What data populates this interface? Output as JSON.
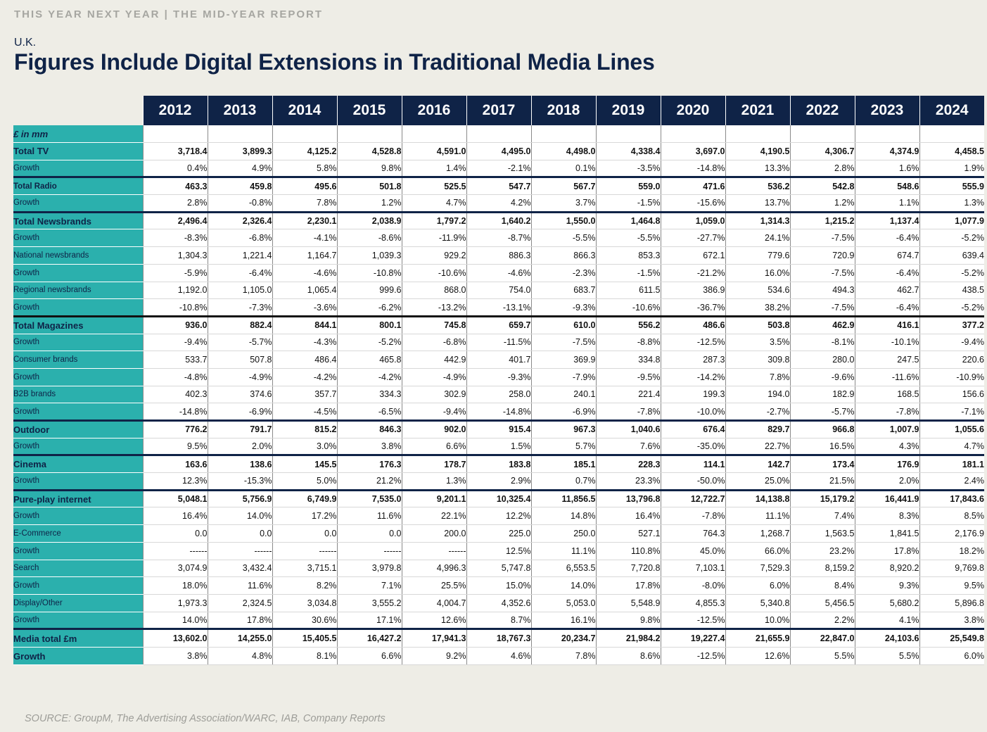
{
  "header": {
    "report_label": "THIS YEAR NEXT YEAR | THE MID-YEAR REPORT",
    "region": "U.K.",
    "title": "Figures Include Digital Extensions in Traditional Media Lines"
  },
  "colors": {
    "navy": "#0f2347",
    "teal": "#2bb0ad",
    "background": "#eeede6"
  },
  "table": {
    "units_label": "£ in mm",
    "years": [
      "2012",
      "2013",
      "2014",
      "2015",
      "2016",
      "2017",
      "2018",
      "2019",
      "2020",
      "2021",
      "2022",
      "2023",
      "2024"
    ],
    "rows": [
      {
        "label": "Total TV",
        "values": [
          "3,718.4",
          "3,899.3",
          "4,125.2",
          "4,528.8",
          "4,591.0",
          "4,495.0",
          "4,498.0",
          "4,338.4",
          "3,697.0",
          "4,190.5",
          "4,306.7",
          "4,374.9",
          "4,458.5"
        ]
      },
      {
        "label": "Growth",
        "values": [
          "0.4%",
          "4.9%",
          "5.8%",
          "9.8%",
          "1.4%",
          "-2.1%",
          "0.1%",
          "-3.5%",
          "-14.8%",
          "13.3%",
          "2.8%",
          "1.6%",
          "1.9%"
        ]
      },
      {
        "label": "Total Radio",
        "values": [
          "463.3",
          "459.8",
          "495.6",
          "501.8",
          "525.5",
          "547.7",
          "567.7",
          "559.0",
          "471.6",
          "536.2",
          "542.8",
          "548.6",
          "555.9"
        ]
      },
      {
        "label": "Growth",
        "values": [
          "2.8%",
          "-0.8%",
          "7.8%",
          "1.2%",
          "4.7%",
          "4.2%",
          "3.7%",
          "-1.5%",
          "-15.6%",
          "13.7%",
          "1.2%",
          "1.1%",
          "1.3%"
        ]
      },
      {
        "label": "Total Newsbrands",
        "values": [
          "2,496.4",
          "2,326.4",
          "2,230.1",
          "2,038.9",
          "1,797.2",
          "1,640.2",
          "1,550.0",
          "1,464.8",
          "1,059.0",
          "1,314.3",
          "1,215.2",
          "1,137.4",
          "1,077.9"
        ]
      },
      {
        "label": "Growth",
        "values": [
          "-8.3%",
          "-6.8%",
          "-4.1%",
          "-8.6%",
          "-11.9%",
          "-8.7%",
          "-5.5%",
          "-5.5%",
          "-27.7%",
          "24.1%",
          "-7.5%",
          "-6.4%",
          "-5.2%"
        ]
      },
      {
        "label": "National newsbrands",
        "values": [
          "1,304.3",
          "1,221.4",
          "1,164.7",
          "1,039.3",
          "929.2",
          "886.3",
          "866.3",
          "853.3",
          "672.1",
          "779.6",
          "720.9",
          "674.7",
          "639.4"
        ]
      },
      {
        "label": "Growth",
        "values": [
          "-5.9%",
          "-6.4%",
          "-4.6%",
          "-10.8%",
          "-10.6%",
          "-4.6%",
          "-2.3%",
          "-1.5%",
          "-21.2%",
          "16.0%",
          "-7.5%",
          "-6.4%",
          "-5.2%"
        ]
      },
      {
        "label": "Regional newsbrands",
        "values": [
          "1,192.0",
          "1,105.0",
          "1,065.4",
          "999.6",
          "868.0",
          "754.0",
          "683.7",
          "611.5",
          "386.9",
          "534.6",
          "494.3",
          "462.7",
          "438.5"
        ]
      },
      {
        "label": "Growth",
        "values": [
          "-10.8%",
          "-7.3%",
          "-3.6%",
          "-6.2%",
          "-13.2%",
          "-13.1%",
          "-9.3%",
          "-10.6%",
          "-36.7%",
          "38.2%",
          "-7.5%",
          "-6.4%",
          "-5.2%"
        ]
      },
      {
        "label": "Total Magazines",
        "values": [
          "936.0",
          "882.4",
          "844.1",
          "800.1",
          "745.8",
          "659.7",
          "610.0",
          "556.2",
          "486.6",
          "503.8",
          "462.9",
          "416.1",
          "377.2"
        ]
      },
      {
        "label": "Growth",
        "values": [
          "-9.4%",
          "-5.7%",
          "-4.3%",
          "-5.2%",
          "-6.8%",
          "-11.5%",
          "-7.5%",
          "-8.8%",
          "-12.5%",
          "3.5%",
          "-8.1%",
          "-10.1%",
          "-9.4%"
        ]
      },
      {
        "label": "Consumer brands",
        "values": [
          "533.7",
          "507.8",
          "486.4",
          "465.8",
          "442.9",
          "401.7",
          "369.9",
          "334.8",
          "287.3",
          "309.8",
          "280.0",
          "247.5",
          "220.6"
        ]
      },
      {
        "label": "Growth",
        "values": [
          "-4.8%",
          "-4.9%",
          "-4.2%",
          "-4.2%",
          "-4.9%",
          "-9.3%",
          "-7.9%",
          "-9.5%",
          "-14.2%",
          "7.8%",
          "-9.6%",
          "-11.6%",
          "-10.9%"
        ]
      },
      {
        "label": "B2B brands",
        "values": [
          "402.3",
          "374.6",
          "357.7",
          "334.3",
          "302.9",
          "258.0",
          "240.1",
          "221.4",
          "199.3",
          "194.0",
          "182.9",
          "168.5",
          "156.6"
        ]
      },
      {
        "label": "Growth",
        "values": [
          "-14.8%",
          "-6.9%",
          "-4.5%",
          "-6.5%",
          "-9.4%",
          "-14.8%",
          "-6.9%",
          "-7.8%",
          "-10.0%",
          "-2.7%",
          "-5.7%",
          "-7.8%",
          "-7.1%"
        ]
      },
      {
        "label": "Outdoor",
        "values": [
          "776.2",
          "791.7",
          "815.2",
          "846.3",
          "902.0",
          "915.4",
          "967.3",
          "1,040.6",
          "676.4",
          "829.7",
          "966.8",
          "1,007.9",
          "1,055.6"
        ]
      },
      {
        "label": "Growth",
        "values": [
          "9.5%",
          "2.0%",
          "3.0%",
          "3.8%",
          "6.6%",
          "1.5%",
          "5.7%",
          "7.6%",
          "-35.0%",
          "22.7%",
          "16.5%",
          "4.3%",
          "4.7%"
        ]
      },
      {
        "label": "Cinema",
        "values": [
          "163.6",
          "138.6",
          "145.5",
          "176.3",
          "178.7",
          "183.8",
          "185.1",
          "228.3",
          "114.1",
          "142.7",
          "173.4",
          "176.9",
          "181.1"
        ]
      },
      {
        "label": "Growth",
        "values": [
          "12.3%",
          "-15.3%",
          "5.0%",
          "21.2%",
          "1.3%",
          "2.9%",
          "0.7%",
          "23.3%",
          "-50.0%",
          "25.0%",
          "21.5%",
          "2.0%",
          "2.4%"
        ]
      },
      {
        "label": "Pure-play internet",
        "values": [
          "5,048.1",
          "5,756.9",
          "6,749.9",
          "7,535.0",
          "9,201.1",
          "10,325.4",
          "11,856.5",
          "13,796.8",
          "12,722.7",
          "14,138.8",
          "15,179.2",
          "16,441.9",
          "17,843.6"
        ]
      },
      {
        "label": "Growth",
        "values": [
          "16.4%",
          "14.0%",
          "17.2%",
          "11.6%",
          "22.1%",
          "12.2%",
          "14.8%",
          "16.4%",
          "-7.8%",
          "11.1%",
          "7.4%",
          "8.3%",
          "8.5%"
        ]
      },
      {
        "label": "E-Commerce",
        "values": [
          "0.0",
          "0.0",
          "0.0",
          "0.0",
          "200.0",
          "225.0",
          "250.0",
          "527.1",
          "764.3",
          "1,268.7",
          "1,563.5",
          "1,841.5",
          "2,176.9"
        ]
      },
      {
        "label": "Growth",
        "values": [
          "------",
          "------",
          "------",
          "------",
          "------",
          "12.5%",
          "11.1%",
          "110.8%",
          "45.0%",
          "66.0%",
          "23.2%",
          "17.8%",
          "18.2%"
        ]
      },
      {
        "label": "Search",
        "values": [
          "3,074.9",
          "3,432.4",
          "3,715.1",
          "3,979.8",
          "4,996.3",
          "5,747.8",
          "6,553.5",
          "7,720.8",
          "7,103.1",
          "7,529.3",
          "8,159.2",
          "8,920.2",
          "9,769.8"
        ]
      },
      {
        "label": "Growth",
        "values": [
          "18.0%",
          "11.6%",
          "8.2%",
          "7.1%",
          "25.5%",
          "15.0%",
          "14.0%",
          "17.8%",
          "-8.0%",
          "6.0%",
          "8.4%",
          "9.3%",
          "9.5%"
        ]
      },
      {
        "label": "Display/Other",
        "values": [
          "1,973.3",
          "2,324.5",
          "3,034.8",
          "3,555.2",
          "4,004.7",
          "4,352.6",
          "5,053.0",
          "5,548.9",
          "4,855.3",
          "5,340.8",
          "5,456.5",
          "5,680.2",
          "5,896.8"
        ]
      },
      {
        "label": "Growth",
        "values": [
          "14.0%",
          "17.8%",
          "30.6%",
          "17.1%",
          "12.6%",
          "8.7%",
          "16.1%",
          "9.8%",
          "-12.5%",
          "10.0%",
          "2.2%",
          "4.1%",
          "3.8%"
        ]
      },
      {
        "label": "Media total £m",
        "values": [
          "13,602.0",
          "14,255.0",
          "15,405.5",
          "16,427.2",
          "17,941.3",
          "18,767.3",
          "20,234.7",
          "21,984.2",
          "19,227.4",
          "21,655.9",
          "22,847.0",
          "24,103.6",
          "25,549.8"
        ]
      },
      {
        "label": "Growth",
        "values": [
          "3.8%",
          "4.8%",
          "8.1%",
          "6.6%",
          "9.2%",
          "4.6%",
          "7.8%",
          "8.6%",
          "-12.5%",
          "12.6%",
          "5.5%",
          "5.5%",
          "6.0%"
        ]
      }
    ]
  },
  "source": "SOURCE: GroupM, The Advertising Association/WARC, IAB, Company Reports"
}
